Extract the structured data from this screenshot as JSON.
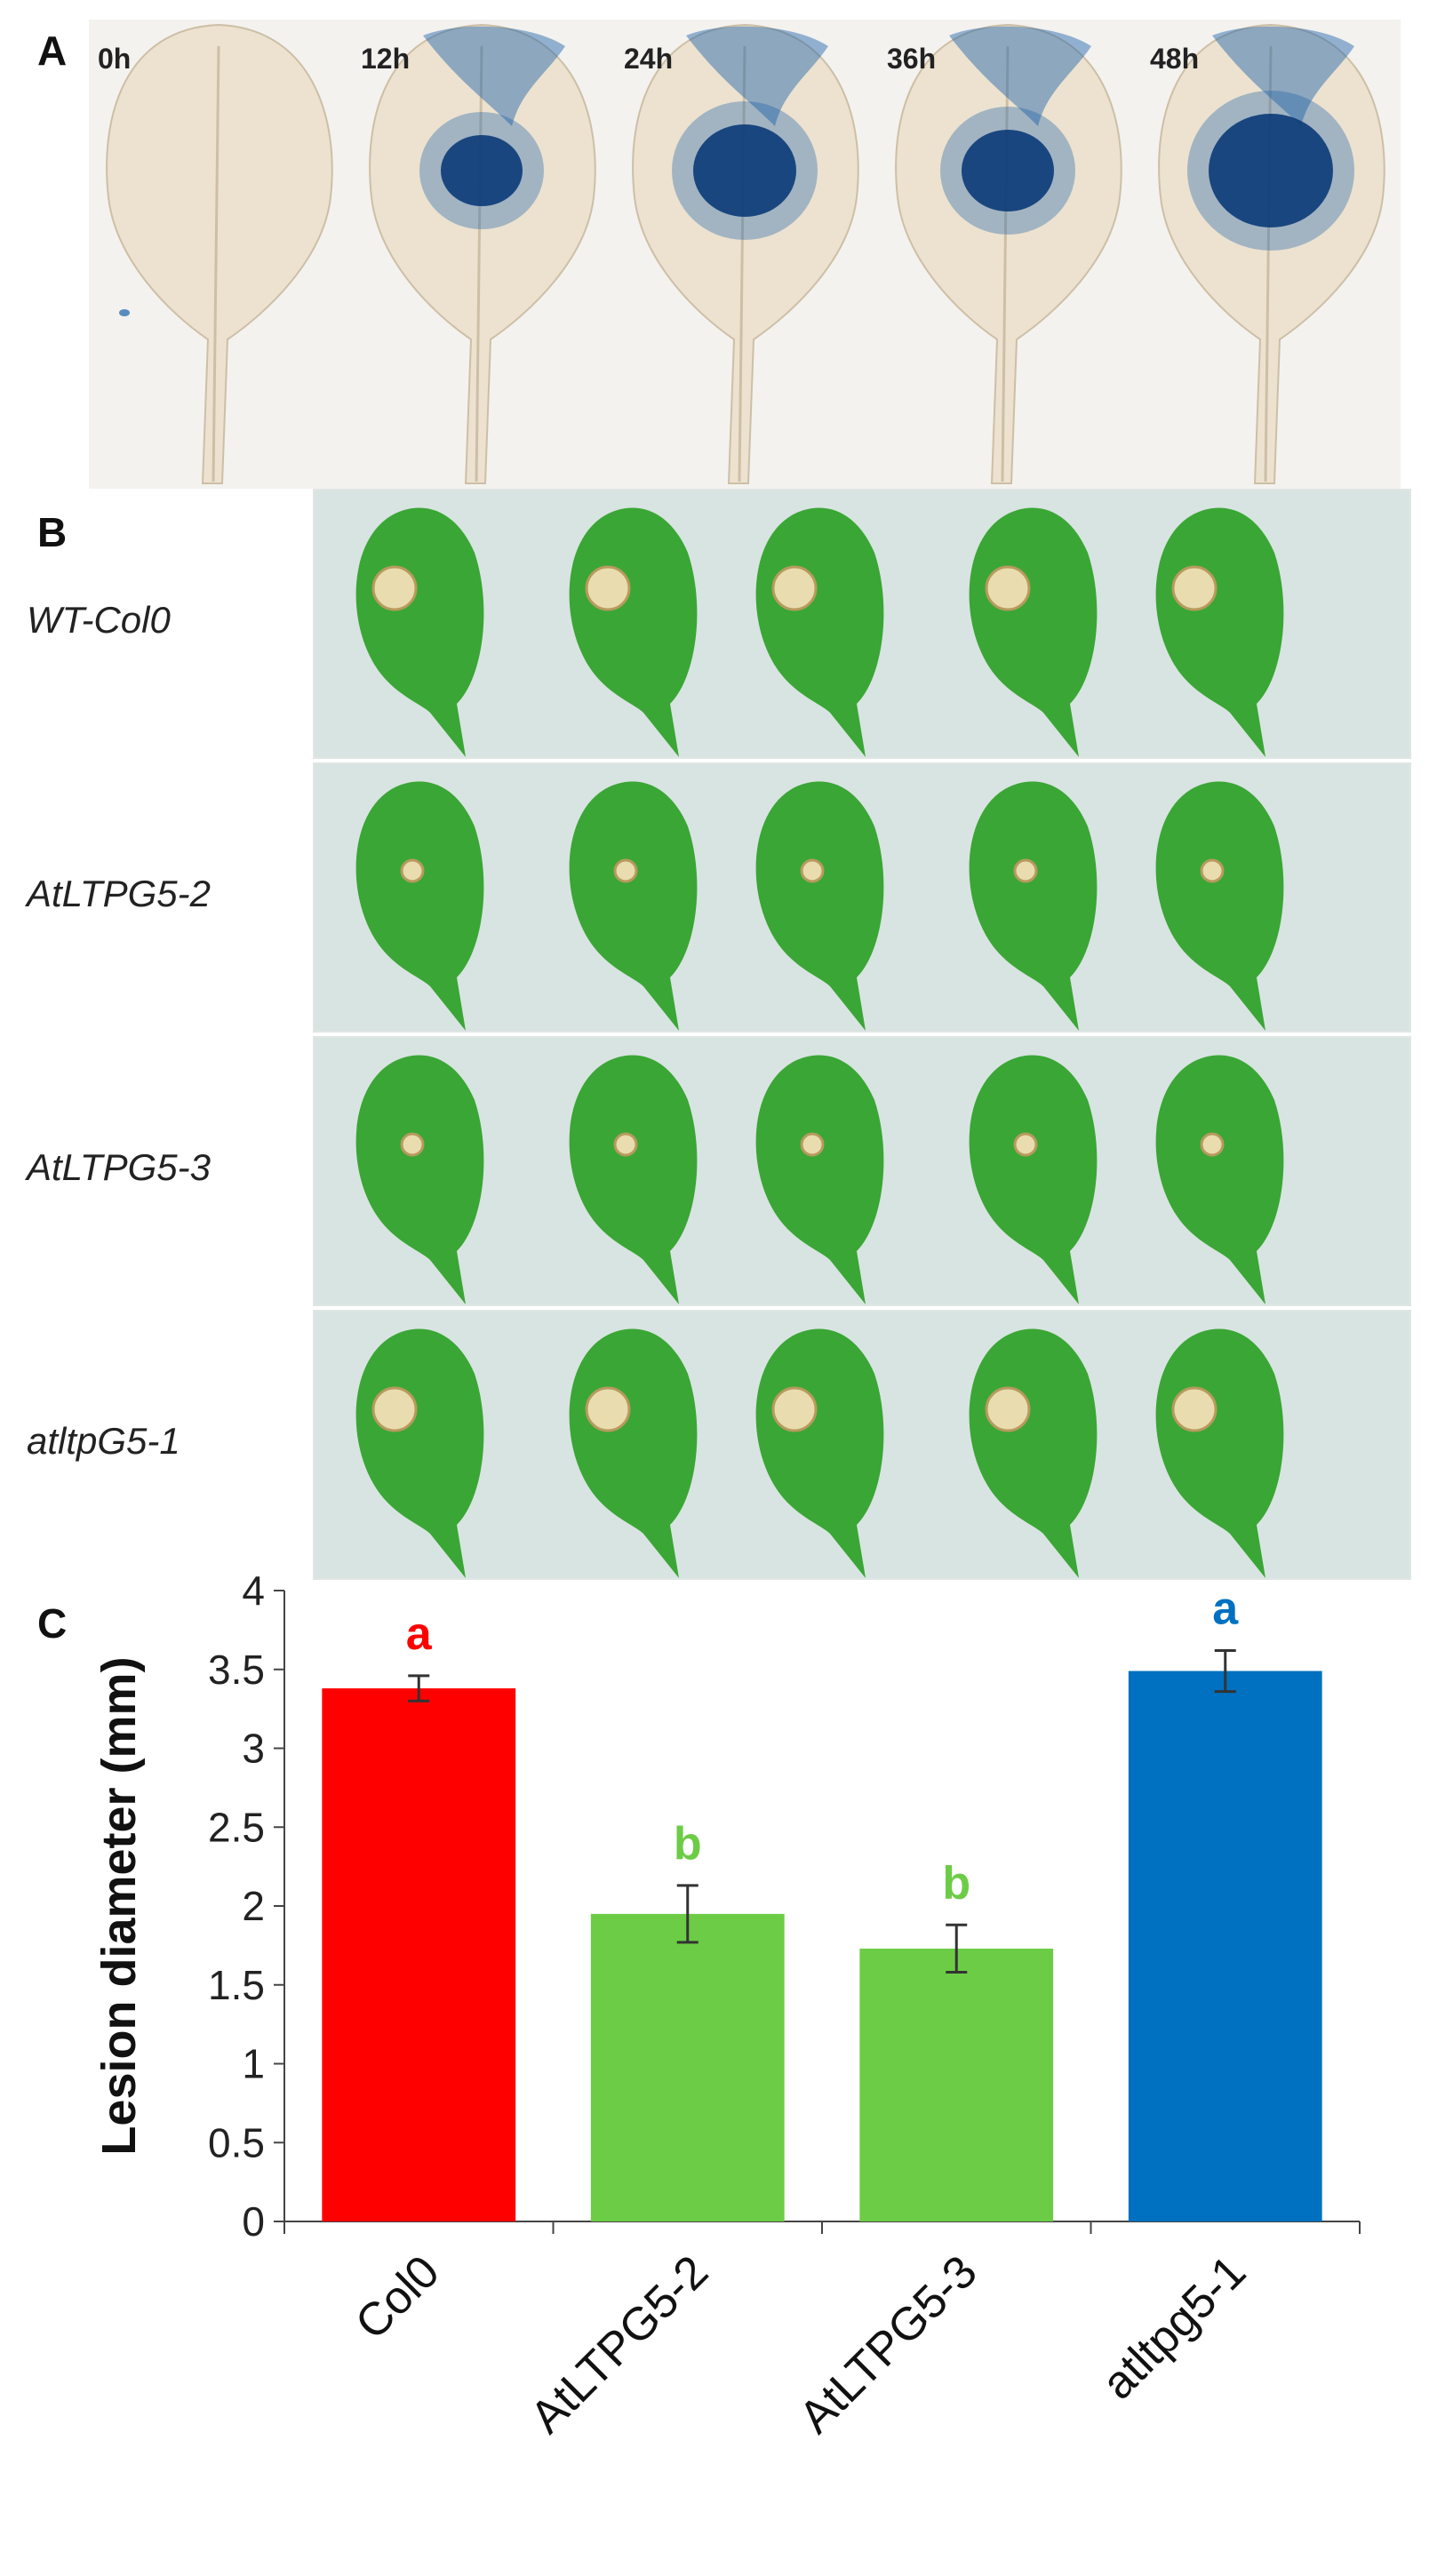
{
  "panels": {
    "a_letter": "A",
    "b_letter": "B",
    "c_letter": "C"
  },
  "panel_a": {
    "time_points": [
      "0h",
      "12h",
      "24h",
      "36h",
      "48h"
    ],
    "stain_color": "#1a5fa8",
    "leaf_color": "#ece2cf"
  },
  "panel_b": {
    "genotypes": [
      "WT-Col0",
      "AtLTPG5-2",
      "AtLTPG5-3",
      "atltpG5-1"
    ],
    "leaves_per_row": 5,
    "leaf_color": "#3aa635",
    "lesion_color": "#e9dcae",
    "background_color": "#d8e4e1"
  },
  "chart_data": {
    "type": "bar",
    "categories": [
      "Col0",
      "AtLTPG5-2",
      "AtLTPG5-3",
      "atltpg5-1"
    ],
    "values": [
      3.38,
      1.95,
      1.73,
      3.49
    ],
    "errors": [
      0.08,
      0.18,
      0.15,
      0.13
    ],
    "significance": [
      "a",
      "b",
      "b",
      "a"
    ],
    "colors": [
      "#ff0000",
      "#6dcc46",
      "#6dcc46",
      "#0070c0"
    ],
    "ylabel": "Lesion diameter (mm)",
    "ylim": [
      0,
      4
    ],
    "yticks": [
      "0",
      "0.5",
      "1",
      "1.5",
      "2",
      "2.5",
      "3",
      "3.5",
      "4"
    ],
    "grid": false
  }
}
